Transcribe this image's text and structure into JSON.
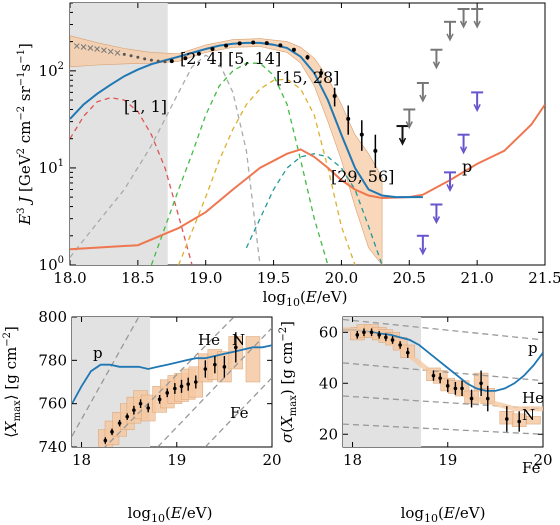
{
  "colors": {
    "fit": "#1f77b4",
    "band": "#f5c9a3",
    "band_edge": "#d9a070",
    "shade": "#e2e2e2",
    "proton": "#ee7750",
    "g1": "#dd5555",
    "g2": "#aaaaaa",
    "g3": "#44bb44",
    "g4": "#ddb030",
    "g5": "#229999",
    "limit_black": "#111111",
    "limit_gray": "#777777",
    "limit_purple": "#6655cc",
    "dashed_ref": "#999999"
  },
  "chart_data": [
    {
      "type": "line",
      "title": "",
      "xlabel": "log10(E/eV)",
      "ylabel": "E^3 J [GeV^2 cm^-2 sr^-1 s^-1]",
      "xlim": [
        18.0,
        21.5
      ],
      "ylim": [
        1,
        500
      ],
      "yscale": "log",
      "x_ticks": [
        "18.0",
        "18.5",
        "19.0",
        "19.5",
        "20.0",
        "20.5",
        "21.0",
        "21.5"
      ],
      "y_ticks": [
        "10^0",
        "10^1",
        "10^2"
      ],
      "shaded_region": [
        18.0,
        18.72
      ],
      "group_labels": [
        "[1, 1]",
        "[2, 4]",
        "[5, 14]",
        "[15, 28]",
        "[29, 56]",
        "p"
      ],
      "data_points_crosses": {
        "x": [
          18.05,
          18.1,
          18.15,
          18.2,
          18.25,
          18.3,
          18.35
        ],
        "y": [
          180,
          176,
          172,
          168,
          163,
          158,
          153
        ]
      },
      "data_points_dots": {
        "x": [
          18.4,
          18.45,
          18.5,
          18.55,
          18.6,
          18.65,
          18.7
        ],
        "y": [
          148,
          143,
          138,
          133,
          129,
          126,
          124
        ]
      },
      "data_points_err": {
        "x": [
          18.75,
          18.85,
          18.95,
          19.05,
          19.15,
          19.25,
          19.35,
          19.45,
          19.55,
          19.65,
          19.75,
          19.85,
          19.95,
          20.05,
          20.15,
          20.25
        ],
        "y": [
          126,
          135,
          150,
          168,
          182,
          192,
          196,
          193,
          183,
          165,
          138,
          95,
          55,
          32,
          22,
          15
        ],
        "err_lo": [
          4,
          4,
          4,
          4,
          4,
          4,
          4,
          5,
          6,
          7,
          8,
          10,
          12,
          10,
          7,
          5
        ],
        "err_hi": [
          4,
          4,
          4,
          4,
          4,
          4,
          4,
          5,
          6,
          7,
          8,
          10,
          12,
          12,
          9,
          7
        ]
      },
      "upper_limits_black": {
        "x": [
          20.45
        ],
        "y": [
          27
        ]
      },
      "upper_limits_gray": {
        "x": [
          20.5,
          20.6,
          20.7,
          20.8,
          20.9,
          21.0
        ],
        "y": [
          40,
          75,
          165,
          320,
          500,
          500
        ]
      },
      "upper_limits_purple": {
        "x": [
          20.6,
          20.7,
          20.8,
          20.9,
          21.0
        ],
        "y": [
          2,
          4.2,
          9,
          22,
          60
        ]
      },
      "series": [
        {
          "name": "[1, 1]",
          "x": [
            18.0,
            18.1,
            18.2,
            18.3,
            18.4,
            18.5,
            18.6,
            18.7,
            18.8,
            18.9
          ],
          "y": [
            20,
            34,
            48,
            53,
            50,
            38,
            22,
            10,
            3.2,
            1
          ]
        },
        {
          "name": "[2, 4]",
          "x": [
            18.0,
            18.2,
            18.4,
            18.6,
            18.8,
            18.9,
            19.0,
            19.1,
            19.2,
            19.3,
            19.4
          ],
          "y": [
            1.2,
            2.7,
            6,
            17,
            60,
            110,
            145,
            120,
            60,
            15,
            1
          ]
        },
        {
          "name": "[5, 14]",
          "x": [
            18.6,
            18.8,
            18.9,
            19.0,
            19.1,
            19.2,
            19.3,
            19.4,
            19.5,
            19.6,
            19.7,
            19.8,
            19.9
          ],
          "y": [
            1,
            6,
            14,
            35,
            70,
            100,
            120,
            120,
            90,
            45,
            12,
            3,
            1
          ]
        },
        {
          "name": "[15, 28]",
          "x": [
            18.8,
            19.0,
            19.1,
            19.2,
            19.3,
            19.4,
            19.5,
            19.6,
            19.7,
            19.8,
            19.9,
            20.0,
            20.1
          ],
          "y": [
            1,
            5,
            12,
            25,
            45,
            65,
            80,
            82,
            65,
            35,
            10,
            2.5,
            1
          ]
        },
        {
          "name": "[29, 56]",
          "x": [
            19.3,
            19.5,
            19.6,
            19.7,
            19.8,
            19.9,
            20.0,
            20.1,
            20.2,
            20.3
          ],
          "y": [
            1.5,
            6,
            10,
            13,
            14,
            13,
            10,
            6,
            2.5,
            1
          ]
        },
        {
          "name": "p",
          "x": [
            18.0,
            18.5,
            18.8,
            19.0,
            19.2,
            19.4,
            19.6,
            19.7,
            19.8,
            19.9,
            20.0,
            20.1,
            20.2,
            20.3,
            20.5,
            20.6,
            20.8,
            21.0,
            21.2,
            21.4,
            21.5
          ],
          "y": [
            1.45,
            1.6,
            2.4,
            3.5,
            6,
            10,
            14,
            15.5,
            13,
            10,
            7.5,
            6,
            5.2,
            4.9,
            5,
            5.3,
            7.5,
            11,
            15,
            28,
            45
          ]
        },
        {
          "name": "fit",
          "x": [
            18.0,
            18.1,
            18.2,
            18.3,
            18.4,
            18.5,
            18.6,
            18.7,
            18.8,
            18.9,
            19.0,
            19.1,
            19.2,
            19.3,
            19.4,
            19.5,
            19.6,
            19.7,
            19.8,
            19.9,
            20.0,
            20.1,
            20.2,
            20.3,
            20.4,
            20.5,
            20.6
          ],
          "y": [
            32,
            45,
            58,
            72,
            88,
            103,
            117,
            128,
            140,
            153,
            168,
            182,
            190,
            194,
            194,
            186,
            172,
            140,
            95,
            50,
            22,
            10,
            6,
            5.2,
            5,
            5,
            5
          ]
        }
      ],
      "band": {
        "x": [
          18.0,
          18.2,
          18.4,
          18.6,
          18.8,
          19.0,
          19.2,
          19.4,
          19.6,
          19.7,
          19.8,
          19.9,
          20.0,
          20.1,
          20.2,
          20.3
        ],
        "lo": [
          110,
          115,
          118,
          120,
          125,
          155,
          175,
          178,
          155,
          120,
          70,
          30,
          12,
          4,
          1.5,
          1
        ],
        "hi": [
          230,
          195,
          170,
          155,
          150,
          185,
          210,
          215,
          200,
          175,
          135,
          85,
          45,
          22,
          14,
          8
        ]
      }
    },
    {
      "type": "line",
      "title": "",
      "xlabel": "log10(E/eV)",
      "ylabel": "⟨X_max⟩ [g cm^-2]",
      "xlim": [
        17.9,
        20.0
      ],
      "ylim": [
        740,
        800
      ],
      "x_ticks": [
        "18",
        "19",
        "20"
      ],
      "y_ticks": [
        "740",
        "760",
        "780",
        "800"
      ],
      "shaded_region": [
        17.9,
        18.72
      ],
      "reference_labels": [
        "p",
        "He",
        "N",
        "Fe"
      ],
      "reference_lines": [
        {
          "name": "p",
          "x": [
            17.9,
            18.6
          ],
          "y": [
            745,
            800
          ]
        },
        {
          "name": "He",
          "x": [
            18.0,
            19.6
          ],
          "y": [
            729,
            800
          ]
        },
        {
          "name": "N",
          "x": [
            18.8,
            20.0
          ],
          "y": [
            740,
            795
          ]
        },
        {
          "name": "Fe",
          "x": [
            19.3,
            20.0
          ],
          "y": [
            740,
            772
          ]
        }
      ],
      "series": [
        {
          "name": "fit",
          "x": [
            17.9,
            18.0,
            18.1,
            18.2,
            18.3,
            18.4,
            18.5,
            18.6,
            18.7,
            18.8,
            18.9,
            19.0,
            19.1,
            19.2,
            19.3,
            19.4,
            19.5,
            19.6,
            19.7,
            19.8,
            19.9,
            20.0
          ],
          "y": [
            760,
            768,
            775,
            778,
            778,
            777,
            777,
            777,
            776,
            777,
            778,
            779,
            780,
            781,
            781,
            782,
            783,
            784,
            785,
            786,
            786,
            787
          ]
        }
      ],
      "points": {
        "x": [
          18.25,
          18.32,
          18.4,
          18.48,
          18.55,
          18.62,
          18.7,
          18.82,
          18.9,
          18.98,
          19.05,
          19.12,
          19.2,
          19.3,
          19.4,
          19.5,
          19.62
        ],
        "y": [
          743,
          747,
          751,
          754,
          757,
          760,
          758,
          762,
          765,
          767,
          768,
          769,
          770,
          776,
          778,
          777,
          786
        ],
        "err": [
          1.5,
          1.5,
          1.5,
          1.5,
          2,
          2,
          2,
          2,
          2,
          2.5,
          3,
          3,
          3,
          4,
          4,
          5,
          7
        ]
      },
      "boxes": {
        "x": [
          18.25,
          18.32,
          18.4,
          18.48,
          18.55,
          18.62,
          18.7,
          18.82,
          18.9,
          18.98,
          19.05,
          19.12,
          19.2,
          19.3,
          19.4,
          19.5,
          19.62,
          19.8
        ],
        "lo": [
          738,
          741,
          745,
          748,
          751,
          753,
          752,
          756,
          758,
          760,
          761,
          762,
          763,
          770,
          771,
          770,
          776,
          770
        ],
        "hi": [
          748,
          752,
          756,
          760,
          763,
          766,
          764,
          768,
          771,
          773,
          774,
          776,
          777,
          783,
          785,
          784,
          791,
          791
        ]
      }
    },
    {
      "type": "line",
      "title": "",
      "xlabel": "log10(E/eV)",
      "ylabel": "σ(X_max) [g cm^-2]",
      "xlim": [
        17.9,
        20.0
      ],
      "ylim": [
        15,
        66
      ],
      "x_ticks": [
        "18",
        "19",
        "20"
      ],
      "y_ticks": [
        "20",
        "40",
        "60"
      ],
      "shaded_region": [
        17.9,
        18.72
      ],
      "reference_labels": [
        "p",
        "He",
        "N",
        "Fe"
      ],
      "reference_lines": [
        {
          "name": "p",
          "x": [
            17.9,
            20.0
          ],
          "y": [
            65,
            57
          ]
        },
        {
          "name": "He",
          "x": [
            17.9,
            20.0
          ],
          "y": [
            48,
            41
          ]
        },
        {
          "name": "N",
          "x": [
            17.9,
            20.0
          ],
          "y": [
            35,
            30
          ]
        },
        {
          "name": "Fe",
          "x": [
            17.9,
            20.0
          ],
          "y": [
            24,
            20
          ]
        }
      ],
      "series": [
        {
          "name": "fit",
          "x": [
            17.9,
            18.0,
            18.1,
            18.2,
            18.3,
            18.4,
            18.5,
            18.6,
            18.7,
            18.8,
            18.9,
            19.0,
            19.1,
            19.2,
            19.3,
            19.4,
            19.5,
            19.6,
            19.7,
            19.8,
            19.9,
            20.0
          ],
          "y": [
            61,
            61,
            60.5,
            60,
            59.5,
            59,
            58,
            57,
            55,
            52,
            49,
            46,
            43,
            40,
            38,
            37,
            37,
            38,
            40,
            43,
            47,
            52
          ]
        },
        {
          "name": "band",
          "x": [
            17.9,
            18.0,
            18.1,
            18.2,
            18.3,
            18.4,
            18.5,
            18.6,
            18.7,
            18.8,
            18.9,
            19.0,
            19.1,
            19.2,
            19.3,
            19.4,
            19.5,
            19.6,
            19.7,
            19.8,
            19.9,
            20.0
          ],
          "y": [
            61,
            61,
            60,
            59,
            58,
            56,
            54,
            51,
            48,
            45,
            42,
            39,
            37,
            35,
            34,
            33,
            32,
            31,
            30,
            30,
            30,
            30
          ]
        }
      ],
      "points": {
        "x": [
          18.05,
          18.12,
          18.2,
          18.28,
          18.35,
          18.42,
          18.5,
          18.58,
          18.85,
          18.92,
          19.0,
          19.08,
          19.15,
          19.25,
          19.35,
          19.42,
          19.62,
          19.75
        ],
        "y": [
          59,
          60,
          60,
          59,
          58,
          57,
          55,
          52,
          43,
          42,
          39,
          38,
          38,
          34,
          40,
          34,
          26,
          25
        ],
        "err": [
          1.5,
          1.5,
          1.5,
          1.5,
          1.5,
          1.5,
          1.5,
          2,
          2,
          2,
          2.5,
          2.5,
          3,
          3.5,
          5,
          5,
          5,
          4
        ]
      },
      "boxes": {
        "x": [
          18.05,
          18.12,
          18.2,
          18.28,
          18.35,
          18.42,
          18.5,
          18.58,
          18.85,
          18.92,
          19.0,
          19.08,
          19.15,
          19.25,
          19.35,
          19.42,
          19.62,
          19.75,
          19.9
        ],
        "lo": [
          57,
          58,
          58,
          57,
          56,
          55,
          53,
          50,
          41,
          40,
          37,
          36,
          35,
          32,
          37,
          32,
          24,
          23,
          24
        ],
        "hi": [
          62,
          63,
          63,
          62,
          61,
          60,
          58,
          55,
          46,
          45,
          42,
          41,
          41,
          37,
          44,
          38,
          29,
          28,
          27
        ]
      }
    }
  ]
}
